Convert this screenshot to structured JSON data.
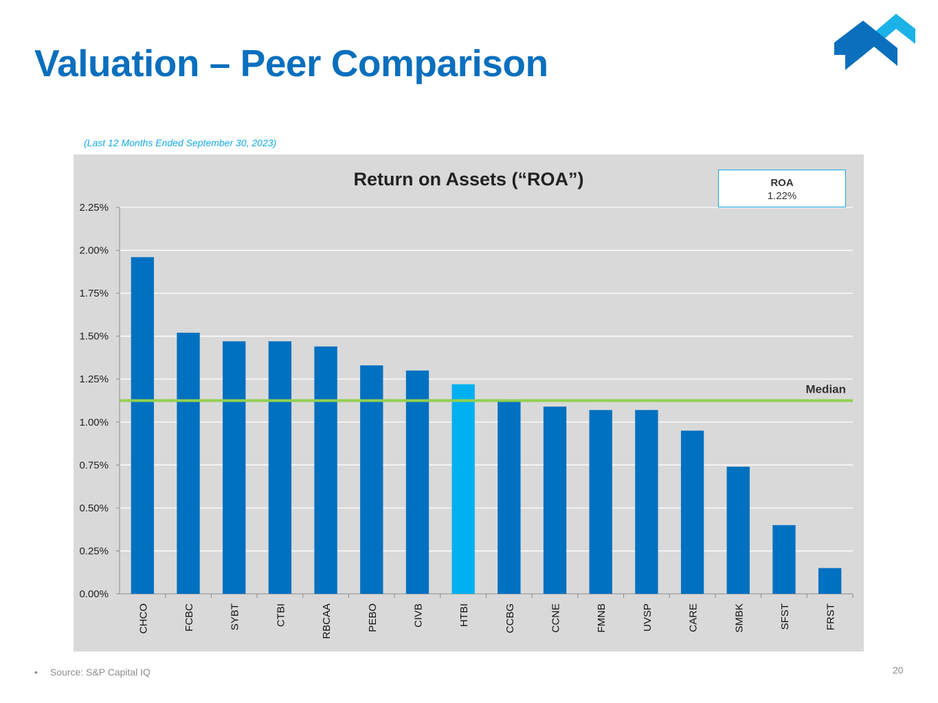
{
  "slide": {
    "title": "Valuation – Peer Comparison",
    "subtitle": "(Last 12 Months Ended September 30, 2023)",
    "footnote_bullet": "•",
    "footnote": "Source: S&P Capital IQ",
    "page_number": "20"
  },
  "roa_box": {
    "label": "ROA",
    "value": "1.22%"
  },
  "colors": {
    "title": "#0a6fbd",
    "bar": "#0070c0",
    "highlight_bar": "#00b0f0",
    "median_line": "#92d050",
    "panel_bg": "#d9d9d9",
    "logo_dark": "#0a6fbd",
    "logo_light": "#1cb2e8"
  },
  "chart_data": {
    "type": "bar",
    "title": "Return on Assets (“ROA”)",
    "xlabel": "",
    "ylabel": "",
    "ylim": [
      0,
      2.25
    ],
    "yticks": [
      0,
      0.25,
      0.5,
      0.75,
      1.0,
      1.25,
      1.5,
      1.75,
      2.0,
      2.25
    ],
    "ytick_labels": [
      "0.00%",
      "0.25%",
      "0.50%",
      "0.75%",
      "1.00%",
      "1.25%",
      "1.50%",
      "1.75%",
      "2.00%",
      "2.25%"
    ],
    "grid": true,
    "categories": [
      "CHCO",
      "FCBC",
      "SYBT",
      "CTBI",
      "RBCAA",
      "PEBO",
      "CIVB",
      "HTBI",
      "CCBG",
      "CCNE",
      "FMNB",
      "UVSP",
      "CARE",
      "SMBK",
      "SFST",
      "FRST"
    ],
    "values": [
      1.96,
      1.52,
      1.47,
      1.47,
      1.44,
      1.33,
      1.3,
      1.22,
      1.13,
      1.09,
      1.07,
      1.07,
      0.95,
      0.74,
      0.4,
      0.15
    ],
    "highlight": "HTBI",
    "median": {
      "label": "Median",
      "value": 1.125
    }
  }
}
